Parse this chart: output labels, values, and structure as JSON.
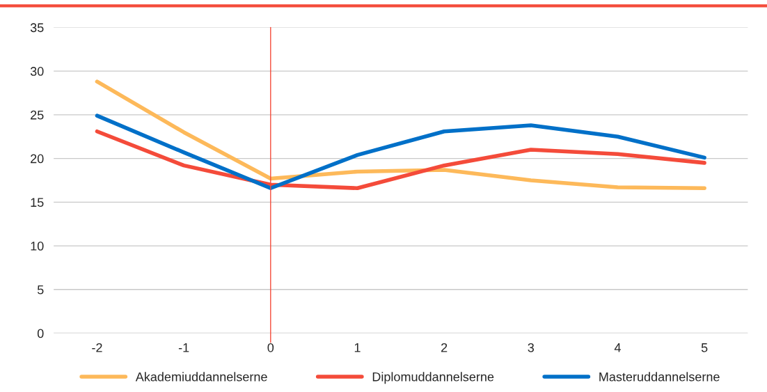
{
  "chart_data": {
    "type": "line",
    "x": [
      -2,
      -1,
      0,
      1,
      2,
      3,
      4,
      5
    ],
    "series": [
      {
        "name": "Akademiuddannelserne",
        "color": "#fdb95a",
        "values": [
          28.8,
          23.0,
          17.7,
          18.5,
          18.7,
          17.5,
          16.7,
          16.6
        ]
      },
      {
        "name": "Diplomuddannelserne",
        "color": "#f44b3a",
        "values": [
          23.1,
          19.2,
          17.0,
          16.6,
          19.2,
          21.0,
          20.5,
          19.5
        ]
      },
      {
        "name": "Masteruddannelserne",
        "color": "#0070c8",
        "values": [
          24.9,
          20.7,
          16.6,
          20.4,
          23.1,
          23.8,
          22.5,
          20.1
        ]
      }
    ],
    "xlim": [
      -2.5,
      5.5
    ],
    "xticks": [
      -2,
      -1,
      0,
      1,
      2,
      3,
      4,
      5
    ],
    "ylim": [
      0,
      35
    ],
    "yticks": [
      0,
      5,
      10,
      15,
      20,
      25,
      30,
      35
    ],
    "ref_lines": [
      {
        "axis": "x",
        "value": 0,
        "color": "#f44b3a"
      }
    ],
    "grid": "y",
    "legend": "bottom",
    "marker": "none",
    "line_style": "solid"
  }
}
